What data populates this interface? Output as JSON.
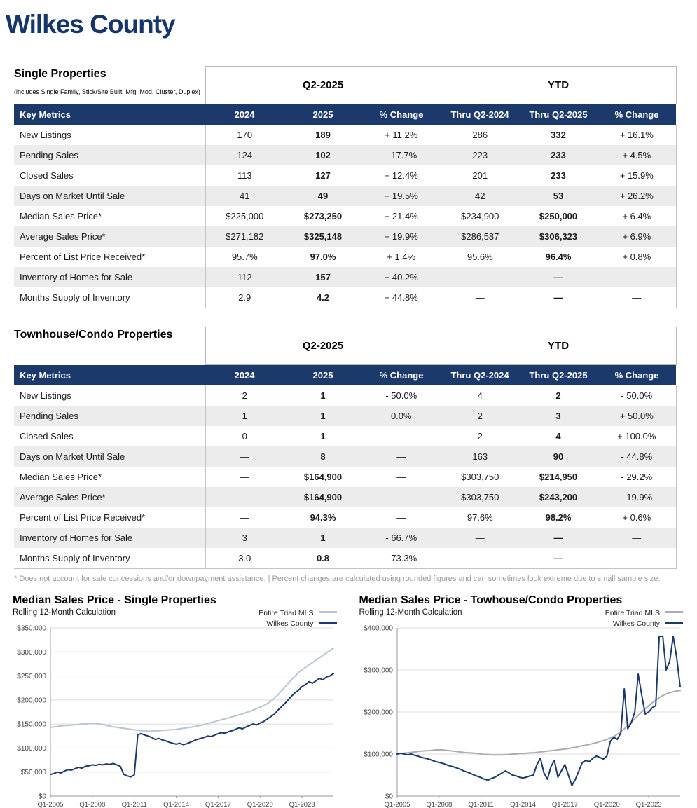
{
  "page": {
    "title": "Wilkes County"
  },
  "tables": [
    {
      "title": "Single Properties",
      "subtitle": "(includes Single Family, Stick/Site Built, Mfg, Mod, Cluster, Duplex)",
      "group_headers": [
        "Q2-2025",
        "YTD"
      ],
      "col_headers": [
        "Key Metrics",
        "2024",
        "2025",
        "% Change",
        "Thru Q2-2024",
        "Thru Q2-2025",
        "% Change"
      ],
      "rows": [
        {
          "metric": "New Listings",
          "values": [
            "170",
            "189",
            "+ 11.2%",
            "286",
            "332",
            "+ 16.1%"
          ]
        },
        {
          "metric": "Pending Sales",
          "values": [
            "124",
            "102",
            "- 17.7%",
            "223",
            "233",
            "+ 4.5%"
          ]
        },
        {
          "metric": "Closed Sales",
          "values": [
            "113",
            "127",
            "+ 12.4%",
            "201",
            "233",
            "+ 15.9%"
          ]
        },
        {
          "metric": "Days on Market Until Sale",
          "values": [
            "41",
            "49",
            "+ 19.5%",
            "42",
            "53",
            "+ 26.2%"
          ]
        },
        {
          "metric": "Median Sales Price*",
          "values": [
            "$225,000",
            "$273,250",
            "+ 21.4%",
            "$234,900",
            "$250,000",
            "+ 6.4%"
          ]
        },
        {
          "metric": "Average Sales Price*",
          "values": [
            "$271,182",
            "$325,148",
            "+ 19.9%",
            "$286,587",
            "$306,323",
            "+ 6.9%"
          ]
        },
        {
          "metric": "Percent of List Price Received*",
          "values": [
            "95.7%",
            "97.0%",
            "+ 1.4%",
            "95.6%",
            "96.4%",
            "+ 0.8%"
          ]
        },
        {
          "metric": "Inventory of Homes for Sale",
          "values": [
            "112",
            "157",
            "+ 40.2%",
            "—",
            "—",
            "—"
          ]
        },
        {
          "metric": "Months Supply of Inventory",
          "values": [
            "2.9",
            "4.2",
            "+ 44.8%",
            "—",
            "—",
            "—"
          ]
        }
      ]
    },
    {
      "title": "Townhouse/Condo Properties",
      "subtitle": "",
      "group_headers": [
        "Q2-2025",
        "YTD"
      ],
      "col_headers": [
        "Key Metrics",
        "2024",
        "2025",
        "% Change",
        "Thru Q2-2024",
        "Thru Q2-2025",
        "% Change"
      ],
      "rows": [
        {
          "metric": "New Listings",
          "values": [
            "2",
            "1",
            "- 50.0%",
            "4",
            "2",
            "- 50.0%"
          ]
        },
        {
          "metric": "Pending Sales",
          "values": [
            "1",
            "1",
            "0.0%",
            "2",
            "3",
            "+ 50.0%"
          ]
        },
        {
          "metric": "Closed Sales",
          "values": [
            "0",
            "1",
            "—",
            "2",
            "4",
            "+ 100.0%"
          ]
        },
        {
          "metric": "Days on Market Until Sale",
          "values": [
            "—",
            "8",
            "—",
            "163",
            "90",
            "- 44.8%"
          ]
        },
        {
          "metric": "Median Sales Price*",
          "values": [
            "—",
            "$164,900",
            "—",
            "$303,750",
            "$214,950",
            "- 29.2%"
          ]
        },
        {
          "metric": "Average Sales Price*",
          "values": [
            "—",
            "$164,900",
            "—",
            "$303,750",
            "$243,200",
            "- 19.9%"
          ]
        },
        {
          "metric": "Percent of List Price Received*",
          "values": [
            "—",
            "94.3%",
            "—",
            "97.6%",
            "98.2%",
            "+ 0.6%"
          ]
        },
        {
          "metric": "Inventory of Homes for Sale",
          "values": [
            "3",
            "1",
            "- 66.7%",
            "—",
            "—",
            "—"
          ]
        },
        {
          "metric": "Months Supply of Inventory",
          "values": [
            "3.0",
            "0.8",
            "- 73.3%",
            "—",
            "—",
            "—"
          ]
        }
      ]
    }
  ],
  "footnote": "* Does not account for sale concessions and/or downpayment assistance. | Percent changes are calculated using rounded figures and can sometimes look extreme due to small sample size.",
  "chart_data": [
    {
      "type": "line",
      "title": "Median Sales Price - Single Properties",
      "subtitle": "Rolling 12-Month Calculation",
      "xlabel": "",
      "ylabel": "",
      "grid": true,
      "legend_position": "top-right",
      "x_start": 2005.0,
      "x_end": 2025.25,
      "ylim": [
        0,
        350000
      ],
      "values_unit": 1000,
      "yticks": [
        {
          "label": "$0",
          "value": 0
        },
        {
          "label": "$50,000",
          "value": 50000
        },
        {
          "label": "$100,000",
          "value": 100000
        },
        {
          "label": "$150,000",
          "value": 150000
        },
        {
          "label": "$200,000",
          "value": 200000
        },
        {
          "label": "$250,000",
          "value": 250000
        },
        {
          "label": "$300,000",
          "value": 300000
        },
        {
          "label": "$350,000",
          "value": 350000
        }
      ],
      "xticks": [
        {
          "label": "Q1-2005",
          "x": 2005
        },
        {
          "label": "Q1-2008",
          "x": 2008
        },
        {
          "label": "Q1-2011",
          "x": 2011
        },
        {
          "label": "Q1-2014",
          "x": 2014
        },
        {
          "label": "Q1-2017",
          "x": 2017
        },
        {
          "label": "Q1-2020",
          "x": 2020
        },
        {
          "label": "Q1-2023",
          "x": 2023
        }
      ],
      "series": [
        {
          "name": "Entire Triad MLS",
          "color": "#b9c5d1",
          "values": [
            143,
            144,
            145,
            146,
            147,
            147,
            148,
            148,
            149,
            150,
            150,
            151,
            151,
            151,
            150,
            149,
            147,
            146,
            144,
            143,
            142,
            141,
            140,
            139,
            138,
            137,
            136,
            136,
            135,
            135,
            136,
            136,
            137,
            137,
            138,
            138,
            139,
            140,
            141,
            142,
            143,
            144,
            146,
            147,
            149,
            151,
            153,
            155,
            157,
            159,
            161,
            163,
            165,
            167,
            169,
            171,
            174,
            176,
            179,
            182,
            185,
            188,
            192,
            197,
            203,
            210,
            218,
            226,
            234,
            242,
            250,
            257,
            263,
            268,
            273,
            278,
            283,
            288,
            293,
            298,
            303,
            308
          ]
        },
        {
          "name": "Wilkes County",
          "color": "#1b3a6b",
          "values": [
            45,
            47,
            50,
            48,
            52,
            55,
            54,
            57,
            60,
            58,
            62,
            63,
            65,
            64,
            66,
            65,
            67,
            66,
            68,
            65,
            62,
            45,
            42,
            40,
            44,
            128,
            130,
            127,
            125,
            122,
            118,
            120,
            117,
            115,
            112,
            110,
            108,
            110,
            107,
            109,
            112,
            115,
            118,
            120,
            122,
            125,
            124,
            127,
            130,
            132,
            131,
            134,
            136,
            139,
            142,
            140,
            144,
            147,
            150,
            148,
            152,
            155,
            160,
            165,
            170,
            178,
            185,
            192,
            200,
            208,
            215,
            220,
            228,
            232,
            238,
            235,
            240,
            245,
            242,
            248,
            250,
            255
          ]
        }
      ]
    },
    {
      "type": "line",
      "title": "Median Sales Price - Towhouse/Condo Properties",
      "subtitle": "Rolling 12-Month Calculation",
      "xlabel": "",
      "ylabel": "",
      "grid": true,
      "legend_position": "top-right",
      "x_start": 2005.0,
      "x_end": 2025.25,
      "ylim": [
        0,
        400000
      ],
      "values_unit": 1000,
      "yticks": [
        {
          "label": "$0",
          "value": 0
        },
        {
          "label": "$100,000",
          "value": 100000
        },
        {
          "label": "$200,000",
          "value": 200000
        },
        {
          "label": "$300,000",
          "value": 300000
        },
        {
          "label": "$400,000",
          "value": 400000
        }
      ],
      "xticks": [
        {
          "label": "Q1-2005",
          "x": 2005
        },
        {
          "label": "Q1-2008",
          "x": 2008
        },
        {
          "label": "Q1-2011",
          "x": 2011
        },
        {
          "label": "Q1-2014",
          "x": 2014
        },
        {
          "label": "Q1-2017",
          "x": 2017
        },
        {
          "label": "Q1-2020",
          "x": 2020
        },
        {
          "label": "Q1-2023",
          "x": 2023
        }
      ],
      "series": [
        {
          "name": "Entire Triad MLS",
          "color": "#a8aeb4",
          "values": [
            100,
            101,
            102,
            103,
            104,
            105,
            106,
            107,
            108,
            108,
            109,
            110,
            110,
            110,
            109,
            108,
            107,
            106,
            105,
            104,
            103,
            103,
            102,
            101,
            100,
            99,
            99,
            98,
            98,
            98,
            98,
            99,
            99,
            100,
            100,
            101,
            101,
            102,
            103,
            103,
            104,
            105,
            106,
            107,
            108,
            109,
            110,
            111,
            112,
            113,
            115,
            116,
            118,
            120,
            121,
            123,
            125,
            127,
            130,
            132,
            135,
            138,
            142,
            147,
            153,
            160,
            168,
            176,
            184,
            192,
            200,
            208,
            215,
            222,
            228,
            234,
            239,
            243,
            246,
            248,
            250,
            251
          ]
        },
        {
          "name": "Wilkes County",
          "color": "#1b3a6b",
          "values": [
            100,
            102,
            100,
            98,
            100,
            97,
            95,
            92,
            90,
            88,
            85,
            82,
            80,
            78,
            75,
            72,
            70,
            67,
            64,
            60,
            57,
            54,
            50,
            47,
            44,
            40,
            38,
            42,
            45,
            50,
            55,
            60,
            55,
            50,
            48,
            45,
            43,
            45,
            48,
            50,
            75,
            90,
            55,
            40,
            70,
            85,
            45,
            60,
            75,
            50,
            25,
            40,
            60,
            80,
            85,
            82,
            90,
            95,
            92,
            88,
            95,
            130,
            140,
            135,
            150,
            255,
            160,
            175,
            200,
            290,
            240,
            195,
            200,
            210,
            215,
            380,
            380,
            300,
            320,
            380,
            330,
            260
          ]
        }
      ]
    }
  ]
}
